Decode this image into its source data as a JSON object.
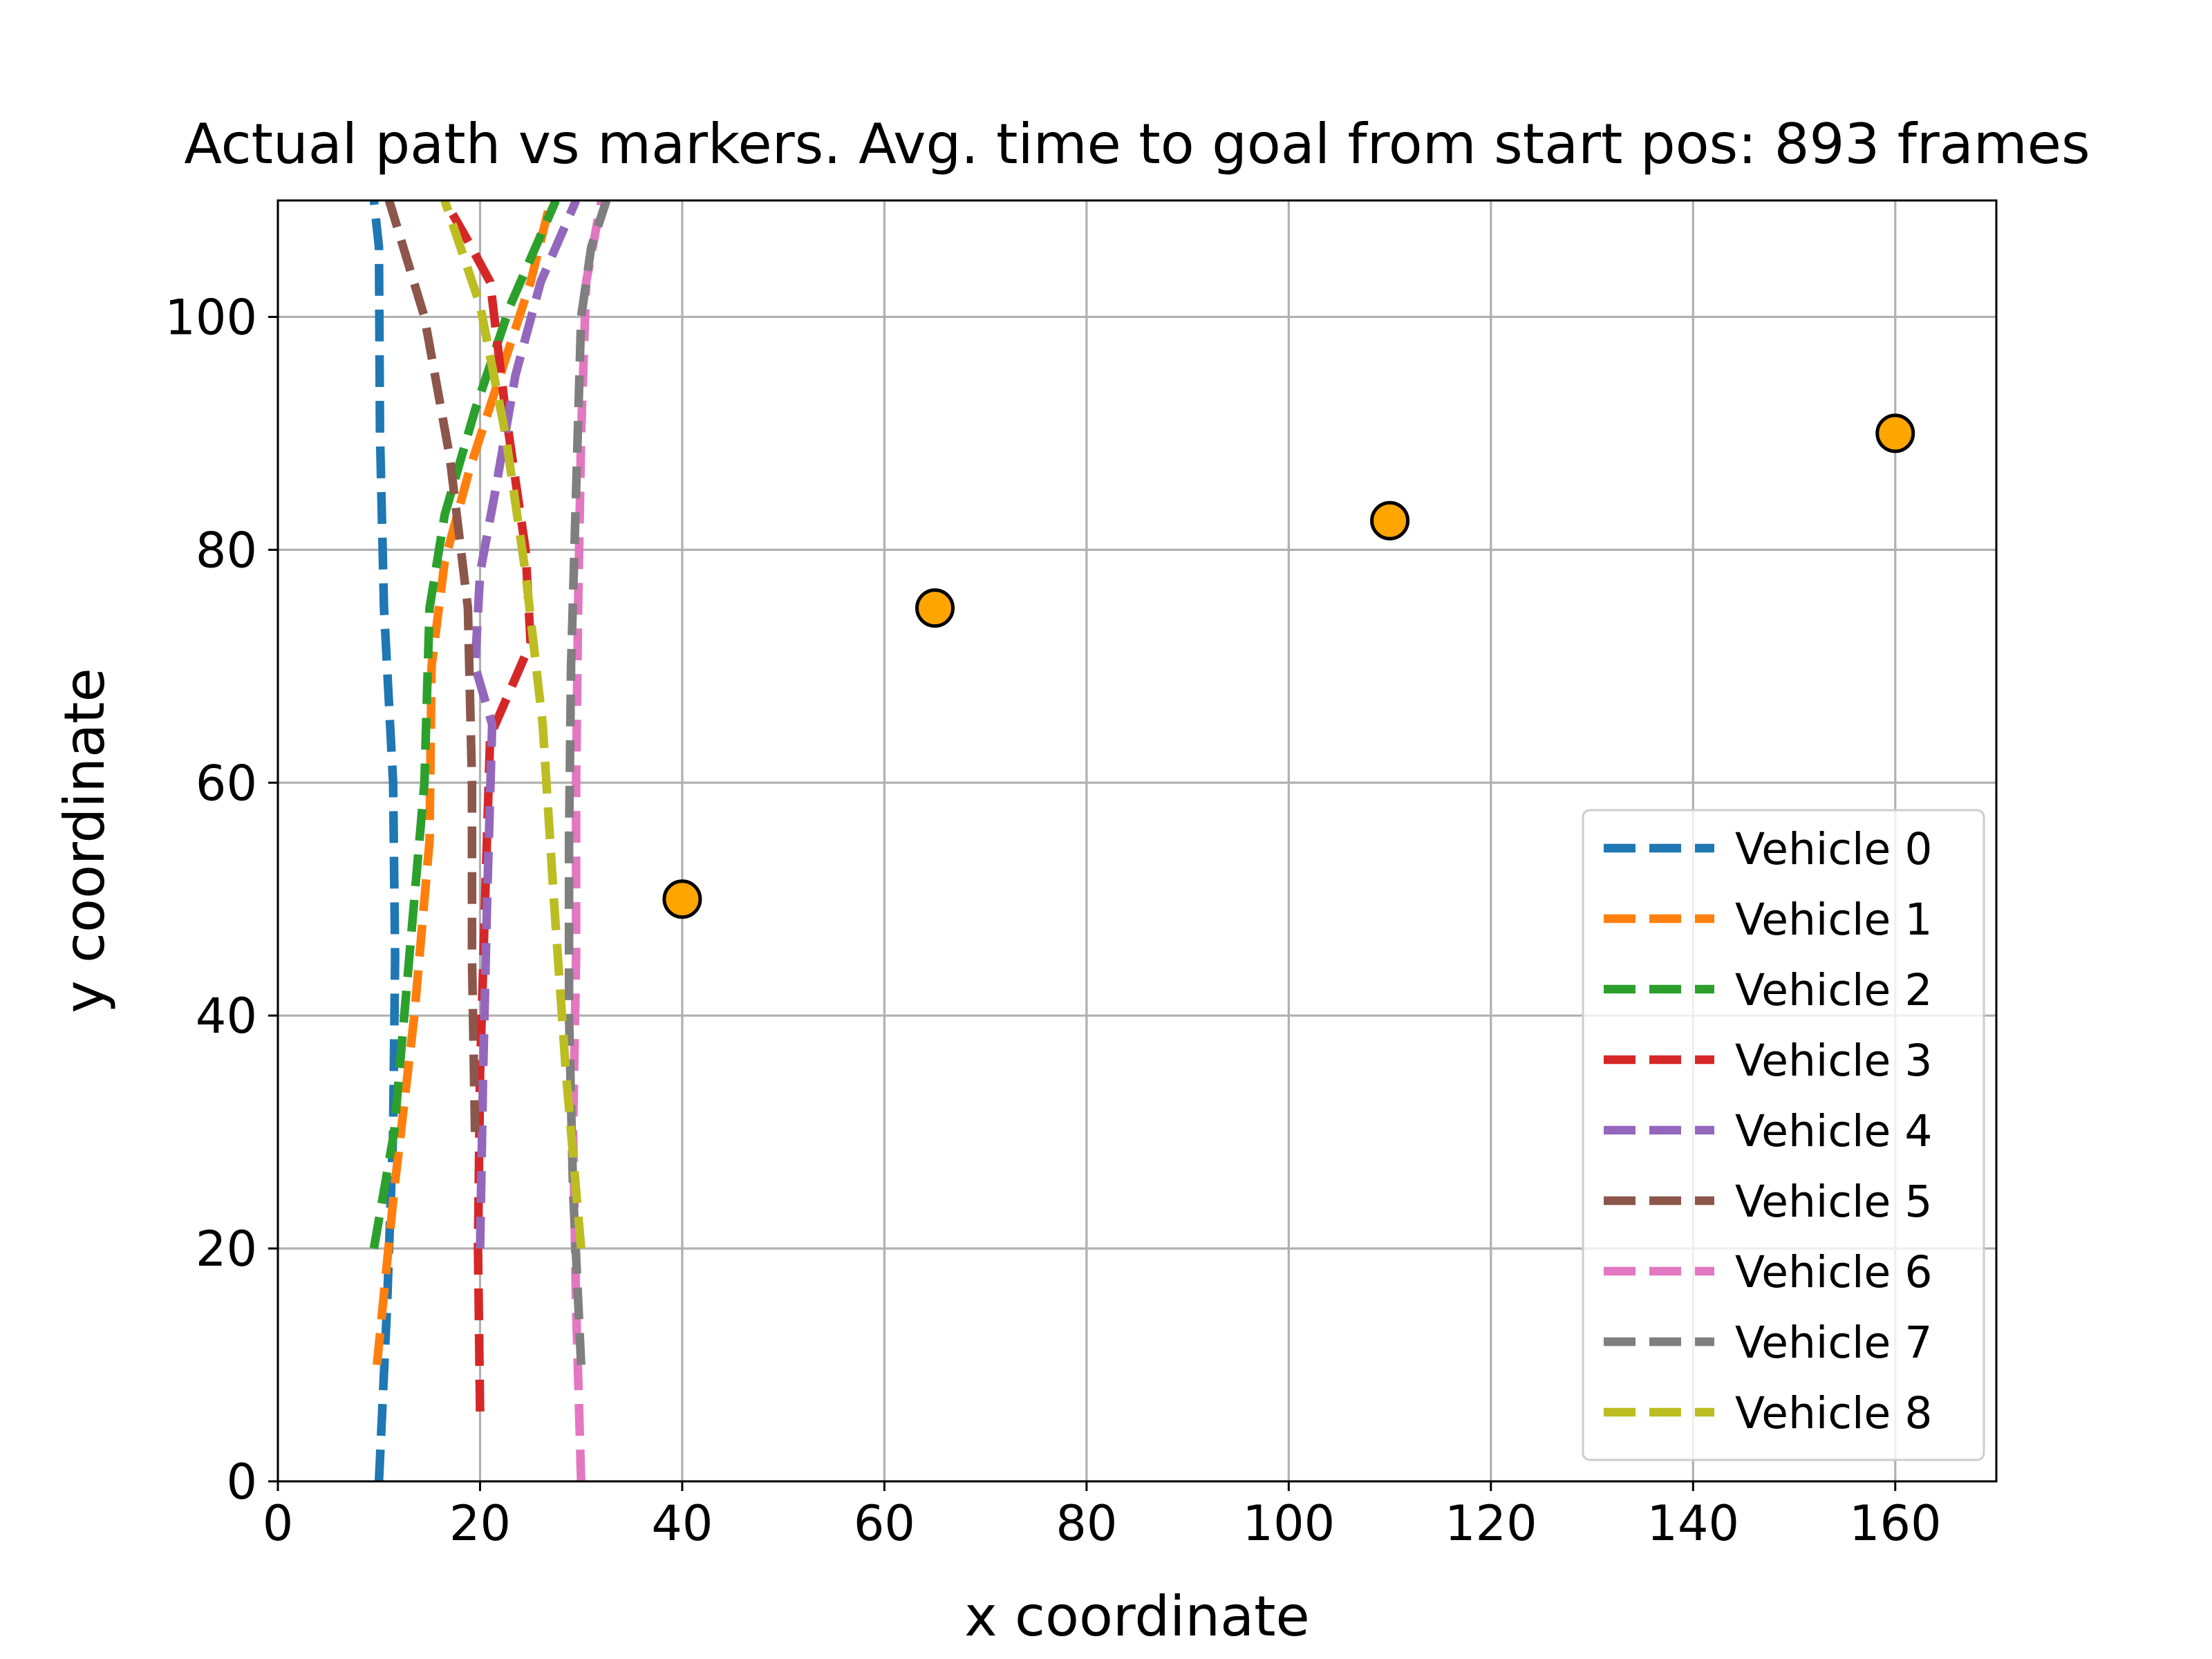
{
  "chart_data": {
    "type": "line",
    "title": "Actual path vs markers. Avg. time to goal from start pos: 893 frames",
    "xlabel": "x coordinate",
    "ylabel": "y coordinate",
    "xlim": [
      0,
      170
    ],
    "ylim": [
      0,
      110
    ],
    "xticks": [
      0,
      20,
      40,
      60,
      80,
      100,
      120,
      140,
      160
    ],
    "yticks": [
      0,
      20,
      40,
      60,
      80,
      100
    ],
    "grid": true,
    "legend_position": "lower-right",
    "series": [
      {
        "name": "Vehicle 0",
        "color": "#1f77b4",
        "points": [
          [
            10,
            0
          ],
          [
            10.8,
            15
          ],
          [
            11.4,
            30
          ],
          [
            11.6,
            45
          ],
          [
            11.4,
            60
          ],
          [
            10.5,
            75
          ],
          [
            10.1,
            90
          ],
          [
            10,
            106
          ],
          [
            9.5,
            110
          ]
        ]
      },
      {
        "name": "Vehicle 1",
        "color": "#ff7f0e",
        "points": [
          [
            9.8,
            10
          ],
          [
            11.5,
            25
          ],
          [
            13.5,
            40
          ],
          [
            15,
            55
          ],
          [
            15.2,
            70
          ],
          [
            16.5,
            79
          ],
          [
            19,
            87
          ],
          [
            22,
            95
          ],
          [
            25,
            103
          ],
          [
            27,
            110
          ]
        ]
      },
      {
        "name": "Vehicle 2",
        "color": "#2ca02c",
        "points": [
          [
            9.5,
            20
          ],
          [
            11.5,
            30
          ],
          [
            12.5,
            40
          ],
          [
            13.5,
            50
          ],
          [
            14.5,
            60
          ],
          [
            15,
            75
          ],
          [
            16.5,
            83
          ],
          [
            19.5,
            92
          ],
          [
            23,
            101
          ],
          [
            27.5,
            110
          ]
        ]
      },
      {
        "name": "Vehicle 3",
        "color": "#d62728",
        "points": [
          [
            20,
            6
          ],
          [
            19.8,
            20
          ],
          [
            20,
            35
          ],
          [
            20.5,
            50
          ],
          [
            21,
            64
          ],
          [
            23.5,
            69
          ],
          [
            25,
            72
          ],
          [
            24.5,
            80
          ],
          [
            22.5,
            92
          ],
          [
            21,
            103
          ],
          [
            18.5,
            107
          ],
          [
            16.5,
            110
          ]
        ]
      },
      {
        "name": "Vehicle 4",
        "color": "#9467bd",
        "points": [
          [
            20,
            20
          ],
          [
            20.3,
            35
          ],
          [
            20.7,
            50
          ],
          [
            21.2,
            65
          ],
          [
            19.5,
            70
          ],
          [
            20,
            78
          ],
          [
            21.5,
            85
          ],
          [
            23.5,
            95
          ],
          [
            26,
            103
          ],
          [
            29.5,
            110
          ]
        ]
      },
      {
        "name": "Vehicle 5",
        "color": "#8c564b",
        "points": [
          [
            19.5,
            30
          ],
          [
            19.2,
            45
          ],
          [
            19.2,
            60
          ],
          [
            18.8,
            75
          ],
          [
            17,
            88
          ],
          [
            14.5,
            100
          ],
          [
            11,
            110
          ]
        ]
      },
      {
        "name": "Vehicle 6",
        "color": "#e377c2",
        "points": [
          [
            30,
            0
          ],
          [
            29.5,
            15
          ],
          [
            29.2,
            30
          ],
          [
            29.5,
            45
          ],
          [
            29.5,
            60
          ],
          [
            29.7,
            75
          ],
          [
            30,
            90
          ],
          [
            30.5,
            103
          ],
          [
            32,
            110
          ]
        ]
      },
      {
        "name": "Vehicle 7",
        "color": "#7f7f7f",
        "points": [
          [
            30,
            10
          ],
          [
            29.2,
            25
          ],
          [
            28.8,
            40
          ],
          [
            28.8,
            55
          ],
          [
            29,
            70
          ],
          [
            29.5,
            85
          ],
          [
            30,
            100
          ],
          [
            31,
            106
          ],
          [
            32.5,
            110
          ]
        ]
      },
      {
        "name": "Vehicle 8",
        "color": "#bcbd22",
        "points": [
          [
            30,
            20
          ],
          [
            28.5,
            35
          ],
          [
            27.3,
            50
          ],
          [
            26.2,
            65
          ],
          [
            24.5,
            78
          ],
          [
            22.5,
            90
          ],
          [
            20,
            101
          ],
          [
            16.5,
            110
          ]
        ]
      }
    ],
    "markers": {
      "color": "#ffa500",
      "edge_color": "#000000",
      "points": [
        [
          40,
          50
        ],
        [
          65,
          75
        ],
        [
          110,
          82.5
        ],
        [
          160,
          90
        ]
      ]
    }
  }
}
